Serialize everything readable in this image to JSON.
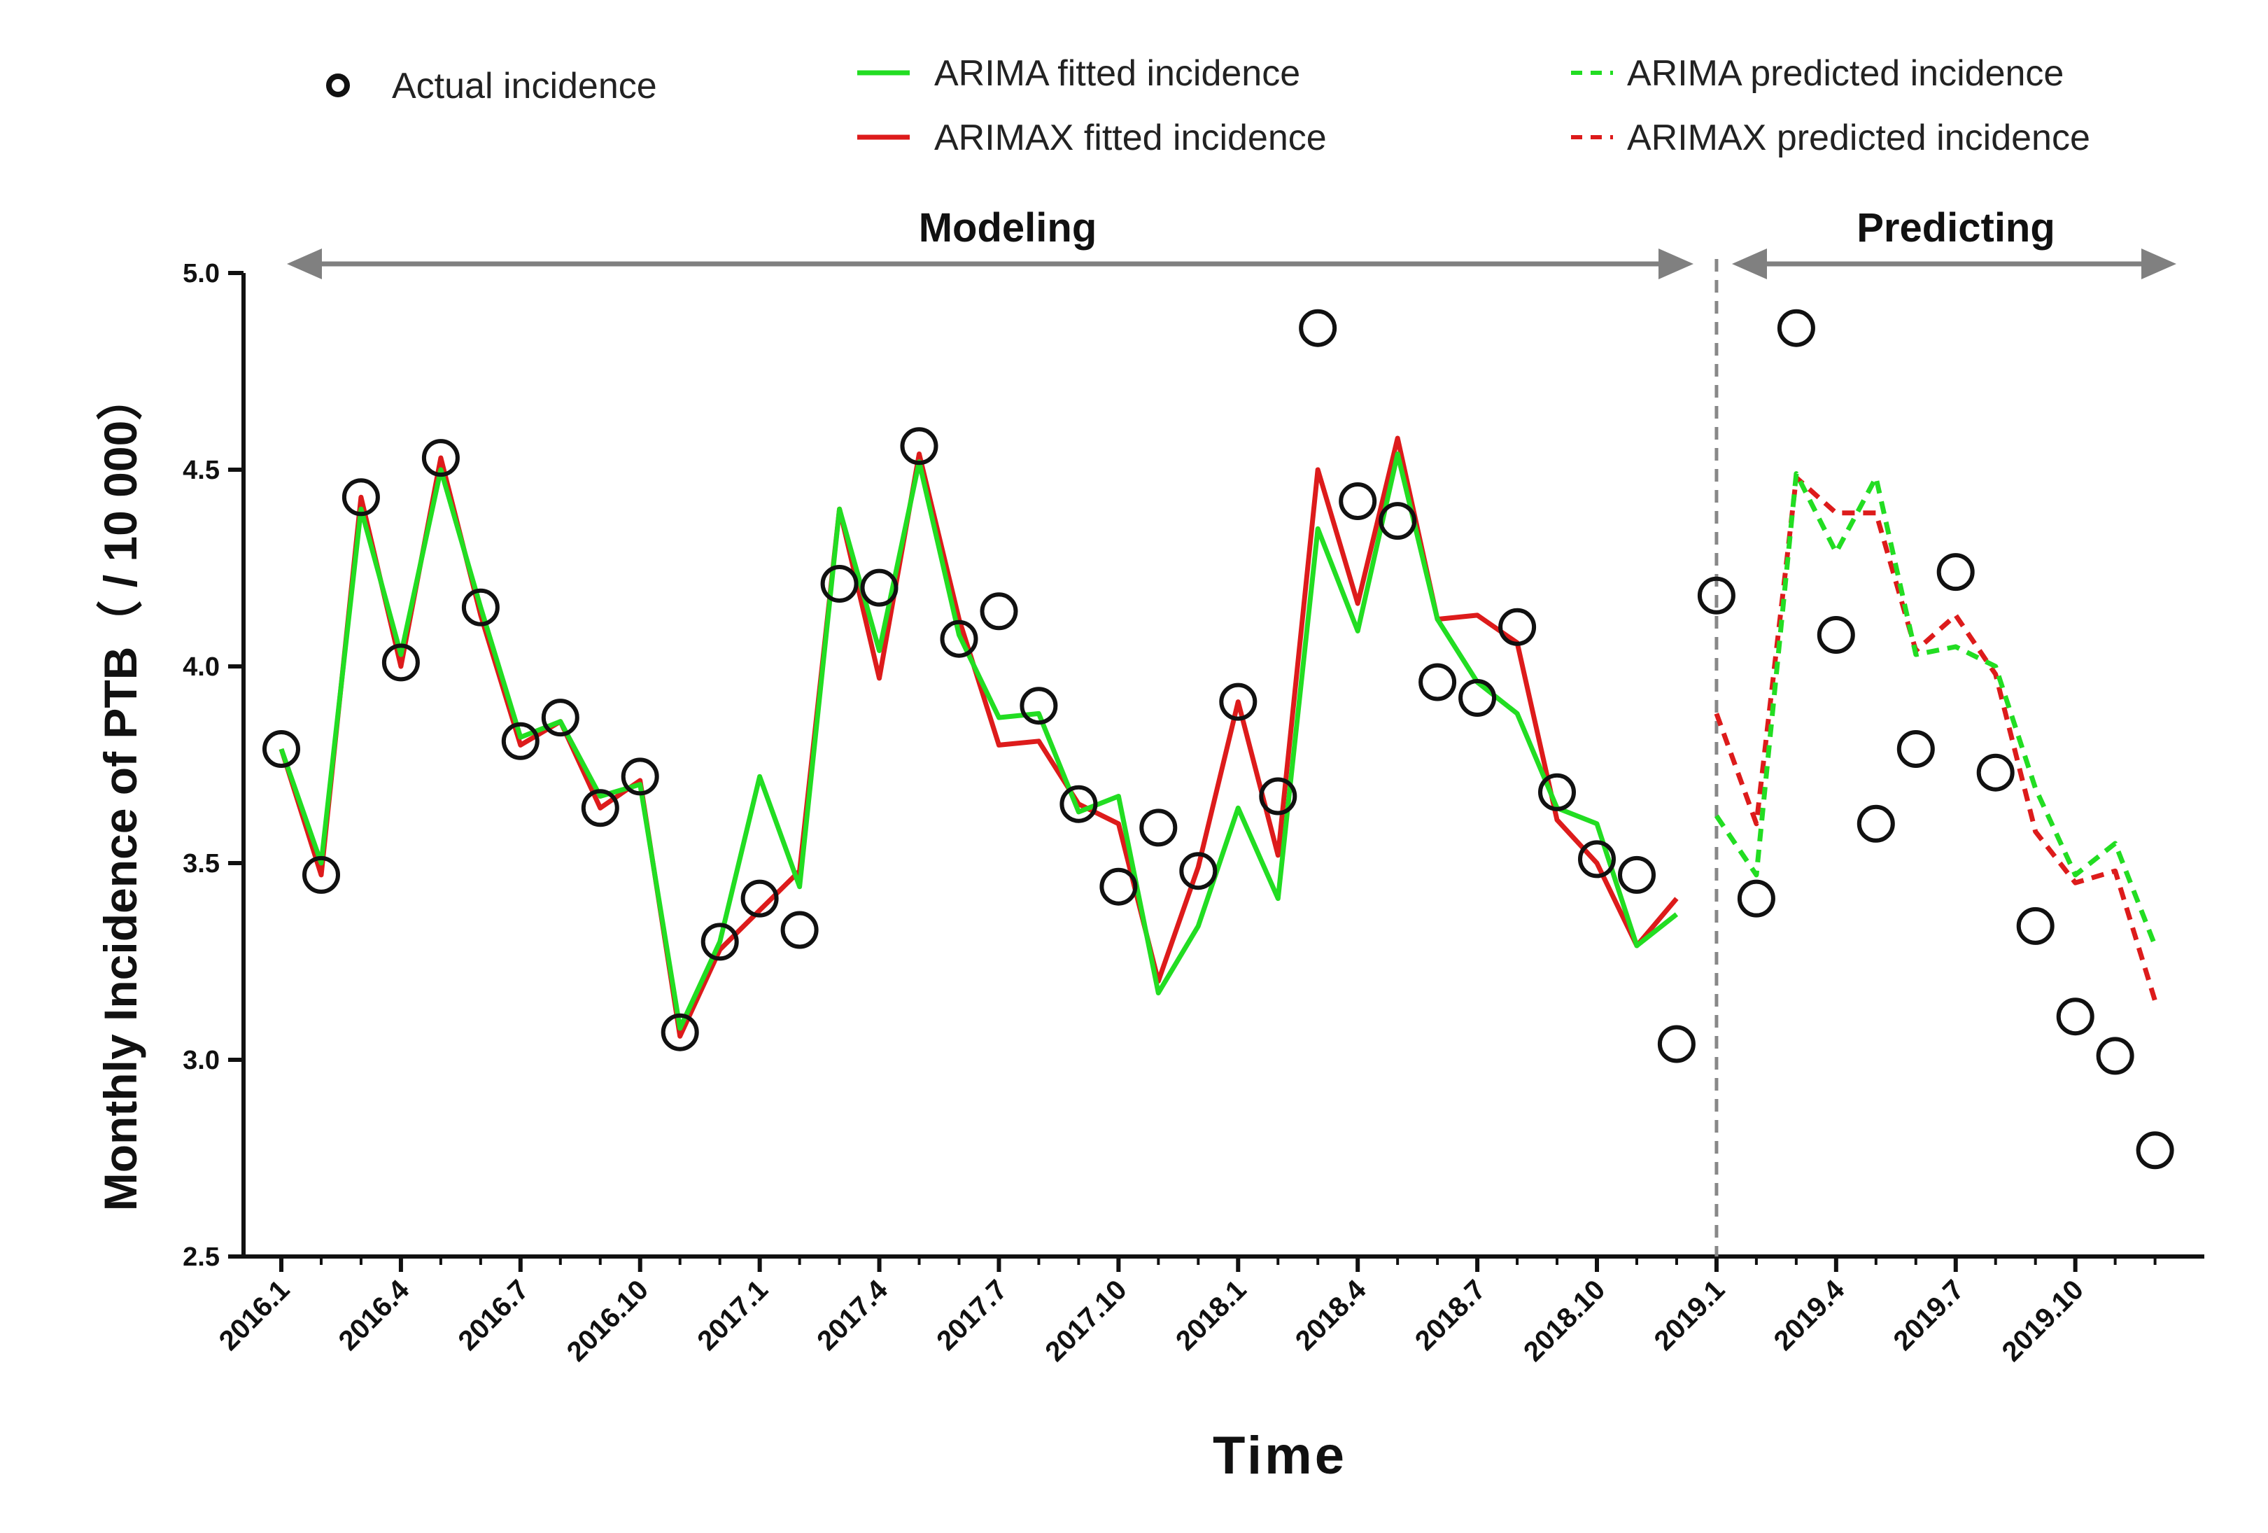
{
  "chart_data": {
    "type": "line",
    "ylabel": "Monthly Incidence of PTB（ / 10 000）",
    "xlabel": "Time",
    "ylim": [
      2.5,
      5.0
    ],
    "yticks": [
      "2.5",
      "3.0",
      "3.5",
      "4.0",
      "4.5",
      "5.0"
    ],
    "ytick_values": [
      2.5,
      3.0,
      3.5,
      4.0,
      4.5,
      5.0
    ],
    "xticks": [
      "2016.1",
      "2016.4",
      "2016.7",
      "2016.10",
      "2017.1",
      "2017.4",
      "2017.7",
      "2017.10",
      "2018.1",
      "2018.4",
      "2018.7",
      "2018.10",
      "2019.1",
      "2019.4",
      "2019.7",
      "2019.10"
    ],
    "xtick_months": [
      0,
      3,
      6,
      9,
      12,
      15,
      18,
      21,
      24,
      27,
      30,
      33,
      36,
      39,
      42,
      45
    ],
    "x_month_range": [
      0,
      47
    ],
    "split_month": 36,
    "phases": {
      "modeling": "Modeling",
      "predicting": "Predicting"
    },
    "legend": {
      "actual": "Actual incidence",
      "arima_fit": "ARIMA fitted  incidence",
      "arimax_fit": "ARIMAX fitted incidence",
      "arima_pred": "ARIMA predicted incidence",
      "arimax_pred": "ARIMAX predicted incidence"
    },
    "colors": {
      "green": "#22dd22",
      "red": "#dd1b1b",
      "actual": "#111111",
      "split_line": "#888888",
      "arrow": "#808080"
    },
    "actual": [
      3.79,
      3.47,
      4.43,
      4.01,
      4.53,
      4.15,
      3.81,
      3.87,
      3.64,
      3.72,
      3.07,
      3.3,
      3.41,
      3.33,
      4.21,
      4.2,
      4.56,
      4.07,
      4.14,
      3.9,
      3.65,
      3.44,
      3.59,
      3.48,
      3.91,
      3.67,
      4.86,
      4.42,
      4.37,
      3.96,
      3.92,
      4.1,
      3.68,
      3.51,
      3.47,
      3.04,
      4.18,
      3.41,
      4.86,
      4.08,
      3.6,
      3.79,
      4.24,
      3.73,
      3.34,
      3.11,
      3.01,
      2.77
    ],
    "arima_fit": [
      3.79,
      3.5,
      4.4,
      4.03,
      4.5,
      4.15,
      3.82,
      3.86,
      3.67,
      3.7,
      3.08,
      3.3,
      3.72,
      3.44,
      4.4,
      4.04,
      4.52,
      4.08,
      3.87,
      3.88,
      3.63,
      3.67,
      3.17,
      3.34,
      3.64,
      3.41,
      4.35,
      4.09,
      4.54,
      4.12,
      3.96,
      3.88,
      3.64,
      3.6,
      3.29,
      3.37
    ],
    "arimax_fit": [
      3.79,
      3.47,
      4.43,
      4.0,
      4.53,
      4.13,
      3.8,
      3.86,
      3.64,
      3.71,
      3.06,
      3.28,
      3.38,
      3.48,
      4.4,
      3.97,
      4.54,
      4.12,
      3.8,
      3.81,
      3.65,
      3.6,
      3.2,
      3.49,
      3.91,
      3.52,
      4.5,
      4.16,
      4.58,
      4.12,
      4.13,
      4.06,
      3.61,
      3.5,
      3.29,
      3.41
    ],
    "arima_pred": [
      3.62,
      3.47,
      4.49,
      4.29,
      4.48,
      4.03,
      4.05,
      4.0,
      3.69,
      3.47,
      3.55,
      3.29
    ],
    "arimax_pred": [
      3.88,
      3.6,
      4.48,
      4.39,
      4.39,
      4.04,
      4.13,
      3.98,
      3.58,
      3.45,
      3.48,
      3.15
    ]
  }
}
